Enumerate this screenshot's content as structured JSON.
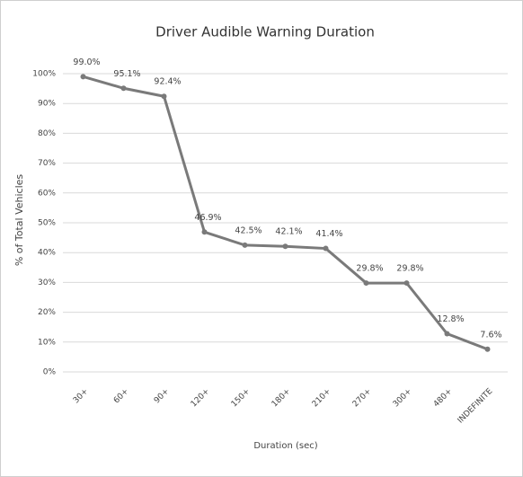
{
  "chart_data": {
    "type": "line",
    "title": "Driver Audible Warning Duration",
    "x_label": "Duration (sec)",
    "y_label": "% of Total Vehicles",
    "categories": [
      "30+",
      "60+",
      "90+",
      "120+",
      "150+",
      "180+",
      "210+",
      "270+",
      "300+",
      "480+",
      "INDEFINITE"
    ],
    "values": [
      99.0,
      95.1,
      92.4,
      46.9,
      42.5,
      42.1,
      41.4,
      29.8,
      29.8,
      12.8,
      7.6
    ],
    "value_labels": [
      "99.0%",
      "95.1%",
      "92.4%",
      "46.9%",
      "42.5%",
      "42.1%",
      "41.4%",
      "29.8%",
      "29.8%",
      "12.8%",
      "7.6%"
    ],
    "color": "#7a7a7a",
    "ylim": [
      0,
      100
    ],
    "yticks": [
      {
        "value": 0,
        "label": "0%"
      },
      {
        "value": 10,
        "label": "10%"
      },
      {
        "value": 20,
        "label": "20%"
      },
      {
        "value": 30,
        "label": "30%"
      },
      {
        "value": 40,
        "label": "40%"
      },
      {
        "value": 50,
        "label": "50%"
      },
      {
        "value": 60,
        "label": "60%"
      },
      {
        "value": 70,
        "label": "70%"
      },
      {
        "value": 80,
        "label": "80%"
      },
      {
        "value": 90,
        "label": "90%"
      },
      {
        "value": 100,
        "label": "100%"
      }
    ],
    "grid": true
  }
}
